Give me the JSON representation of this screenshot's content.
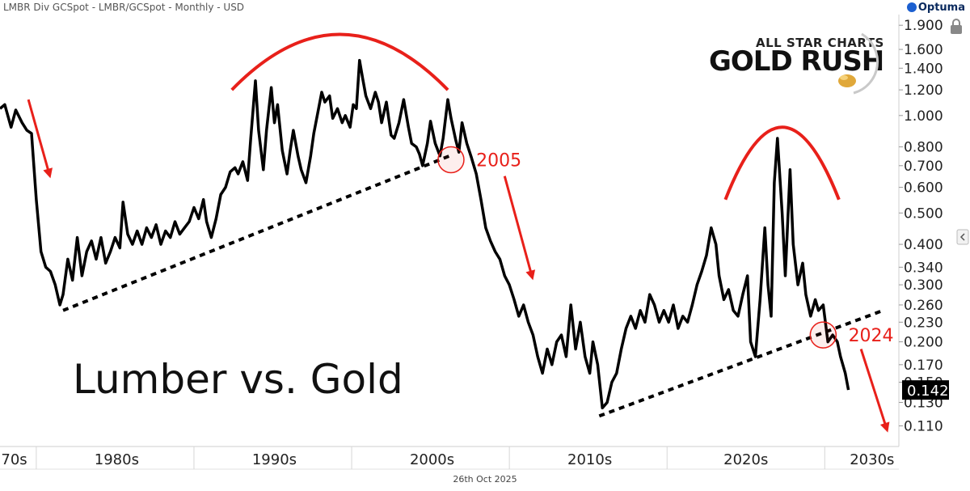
{
  "header": {
    "instrument": "LMBR Div GCSpot - LMBR/GCSpot - Monthly - USD",
    "brand": "Optuma"
  },
  "logo": {
    "top": "ALL STAR CHARTS",
    "main": "GOLD RUSH"
  },
  "footer": {
    "date": "26th Oct 2025"
  },
  "colors": {
    "line": "#000000",
    "annotation": "#e8201a",
    "axis_text": "#222222",
    "price_tag": "#000000"
  },
  "icons": {
    "lock": "lock-icon",
    "side": "chevron-left-icon"
  },
  "chart_data": {
    "type": "line",
    "title": "Lumber vs. Gold",
    "xlabel": "",
    "ylabel": "",
    "y_scale": "log",
    "ylim": [
      0.095,
      2.05
    ],
    "xlim": [
      1976,
      2033
    ],
    "grid": false,
    "y_ticks": [
      1.9,
      1.6,
      1.4,
      1.2,
      1.0,
      0.8,
      0.7,
      0.6,
      0.5,
      0.4,
      0.34,
      0.3,
      0.26,
      0.23,
      0.2,
      0.17,
      0.15,
      0.13,
      0.11
    ],
    "y_tick_labels": [
      "1.900",
      "1.600",
      "1.400",
      "1.200",
      "1.000",
      "0.800",
      "0.700",
      "0.600",
      "0.500",
      "0.400",
      "0.340",
      "0.300",
      "0.260",
      "0.230",
      "0.200",
      "0.170",
      "0.150",
      "0.130",
      "0.110"
    ],
    "x_decades": [
      {
        "label": "70s",
        "center": 1976.9
      },
      {
        "label": "1980s",
        "center": 1983.4
      },
      {
        "label": "1990s",
        "center": 1993.4
      },
      {
        "label": "2000s",
        "center": 2003.4
      },
      {
        "label": "2010s",
        "center": 2013.4
      },
      {
        "label": "2020s",
        "center": 2023.3
      },
      {
        "label": "2030s",
        "center": 2031.3
      }
    ],
    "x_separators": [
      1978.3,
      1988.3,
      1998.3,
      2008.3,
      2018.3,
      2028.3
    ],
    "last_value": "0.142",
    "series": [
      {
        "values": [
          [
            1976.0,
            1.05
          ],
          [
            1976.3,
            1.08
          ],
          [
            1976.7,
            0.92
          ],
          [
            1977.0,
            1.04
          ],
          [
            1977.4,
            0.95
          ],
          [
            1977.7,
            0.9
          ],
          [
            1978.0,
            0.88
          ],
          [
            1978.3,
            0.55
          ],
          [
            1978.6,
            0.38
          ],
          [
            1978.9,
            0.34
          ],
          [
            1979.2,
            0.33
          ],
          [
            1979.5,
            0.3
          ],
          [
            1979.8,
            0.26
          ],
          [
            1980.0,
            0.28
          ],
          [
            1980.3,
            0.36
          ],
          [
            1980.6,
            0.31
          ],
          [
            1980.9,
            0.42
          ],
          [
            1981.2,
            0.32
          ],
          [
            1981.5,
            0.38
          ],
          [
            1981.8,
            0.41
          ],
          [
            1982.1,
            0.36
          ],
          [
            1982.4,
            0.42
          ],
          [
            1982.7,
            0.35
          ],
          [
            1983.0,
            0.38
          ],
          [
            1983.3,
            0.42
          ],
          [
            1983.6,
            0.39
          ],
          [
            1983.8,
            0.54
          ],
          [
            1984.1,
            0.43
          ],
          [
            1984.4,
            0.4
          ],
          [
            1984.7,
            0.44
          ],
          [
            1985.0,
            0.4
          ],
          [
            1985.3,
            0.45
          ],
          [
            1985.6,
            0.42
          ],
          [
            1985.9,
            0.46
          ],
          [
            1986.2,
            0.4
          ],
          [
            1986.5,
            0.44
          ],
          [
            1986.8,
            0.42
          ],
          [
            1987.1,
            0.47
          ],
          [
            1987.4,
            0.43
          ],
          [
            1987.7,
            0.45
          ],
          [
            1988.0,
            0.47
          ],
          [
            1988.3,
            0.52
          ],
          [
            1988.6,
            0.48
          ],
          [
            1988.9,
            0.55
          ],
          [
            1989.1,
            0.47
          ],
          [
            1989.4,
            0.42
          ],
          [
            1989.7,
            0.48
          ],
          [
            1990.0,
            0.57
          ],
          [
            1990.3,
            0.6
          ],
          [
            1990.6,
            0.67
          ],
          [
            1990.9,
            0.69
          ],
          [
            1991.1,
            0.66
          ],
          [
            1991.4,
            0.72
          ],
          [
            1991.7,
            0.63
          ],
          [
            1991.9,
            0.85
          ],
          [
            1992.2,
            1.28
          ],
          [
            1992.4,
            0.9
          ],
          [
            1992.7,
            0.68
          ],
          [
            1992.9,
            0.9
          ],
          [
            1993.2,
            1.22
          ],
          [
            1993.4,
            0.95
          ],
          [
            1993.6,
            1.08
          ],
          [
            1993.9,
            0.78
          ],
          [
            1994.2,
            0.66
          ],
          [
            1994.4,
            0.78
          ],
          [
            1994.6,
            0.9
          ],
          [
            1994.9,
            0.75
          ],
          [
            1995.1,
            0.68
          ],
          [
            1995.4,
            0.62
          ],
          [
            1995.7,
            0.75
          ],
          [
            1995.9,
            0.88
          ],
          [
            1996.2,
            1.05
          ],
          [
            1996.4,
            1.18
          ],
          [
            1996.6,
            1.1
          ],
          [
            1996.9,
            1.15
          ],
          [
            1997.1,
            0.98
          ],
          [
            1997.4,
            1.05
          ],
          [
            1997.7,
            0.95
          ],
          [
            1997.9,
            1.0
          ],
          [
            1998.2,
            0.92
          ],
          [
            1998.4,
            1.08
          ],
          [
            1998.6,
            1.05
          ],
          [
            1998.8,
            1.48
          ],
          [
            1999.0,
            1.3
          ],
          [
            1999.2,
            1.15
          ],
          [
            1999.5,
            1.05
          ],
          [
            1999.8,
            1.18
          ],
          [
            2000.0,
            1.1
          ],
          [
            2000.2,
            0.95
          ],
          [
            2000.5,
            1.1
          ],
          [
            2000.8,
            0.87
          ],
          [
            2001.0,
            0.85
          ],
          [
            2001.3,
            0.95
          ],
          [
            2001.6,
            1.12
          ],
          [
            2001.9,
            0.92
          ],
          [
            2002.1,
            0.82
          ],
          [
            2002.4,
            0.8
          ],
          [
            2002.6,
            0.76
          ],
          [
            2002.8,
            0.7
          ],
          [
            2003.1,
            0.82
          ],
          [
            2003.3,
            0.96
          ],
          [
            2003.6,
            0.82
          ],
          [
            2003.9,
            0.75
          ],
          [
            2004.1,
            0.85
          ],
          [
            2004.4,
            1.12
          ],
          [
            2004.6,
            0.98
          ],
          [
            2004.9,
            0.84
          ],
          [
            2005.1,
            0.77
          ],
          [
            2005.3,
            0.95
          ],
          [
            2005.6,
            0.82
          ],
          [
            2005.9,
            0.74
          ],
          [
            2006.2,
            0.66
          ],
          [
            2006.5,
            0.55
          ],
          [
            2006.8,
            0.45
          ],
          [
            2007.1,
            0.41
          ],
          [
            2007.4,
            0.38
          ],
          [
            2007.7,
            0.36
          ],
          [
            2008.0,
            0.32
          ],
          [
            2008.3,
            0.3
          ],
          [
            2008.6,
            0.27
          ],
          [
            2008.9,
            0.24
          ],
          [
            2009.2,
            0.26
          ],
          [
            2009.5,
            0.23
          ],
          [
            2009.8,
            0.21
          ],
          [
            2010.1,
            0.18
          ],
          [
            2010.4,
            0.16
          ],
          [
            2010.7,
            0.19
          ],
          [
            2011.0,
            0.17
          ],
          [
            2011.3,
            0.2
          ],
          [
            2011.6,
            0.21
          ],
          [
            2011.9,
            0.18
          ],
          [
            2012.2,
            0.26
          ],
          [
            2012.5,
            0.19
          ],
          [
            2012.8,
            0.23
          ],
          [
            2013.1,
            0.18
          ],
          [
            2013.4,
            0.16
          ],
          [
            2013.6,
            0.2
          ],
          [
            2013.9,
            0.17
          ],
          [
            2014.2,
            0.125
          ],
          [
            2014.5,
            0.13
          ],
          [
            2014.8,
            0.15
          ],
          [
            2015.1,
            0.16
          ],
          [
            2015.4,
            0.19
          ],
          [
            2015.7,
            0.22
          ],
          [
            2016.0,
            0.24
          ],
          [
            2016.3,
            0.22
          ],
          [
            2016.6,
            0.25
          ],
          [
            2016.9,
            0.23
          ],
          [
            2017.2,
            0.28
          ],
          [
            2017.5,
            0.26
          ],
          [
            2017.8,
            0.23
          ],
          [
            2018.1,
            0.25
          ],
          [
            2018.4,
            0.23
          ],
          [
            2018.7,
            0.26
          ],
          [
            2019.0,
            0.22
          ],
          [
            2019.3,
            0.24
          ],
          [
            2019.6,
            0.23
          ],
          [
            2019.9,
            0.26
          ],
          [
            2020.2,
            0.3
          ],
          [
            2020.5,
            0.33
          ],
          [
            2020.8,
            0.37
          ],
          [
            2021.1,
            0.45
          ],
          [
            2021.4,
            0.4
          ],
          [
            2021.6,
            0.32
          ],
          [
            2021.9,
            0.27
          ],
          [
            2022.2,
            0.29
          ],
          [
            2022.5,
            0.25
          ],
          [
            2022.8,
            0.24
          ],
          [
            2023.1,
            0.28
          ],
          [
            2023.4,
            0.32
          ],
          [
            2023.6,
            0.2
          ],
          [
            2023.9,
            0.18
          ],
          [
            2024.2,
            0.27
          ],
          [
            2024.5,
            0.45
          ],
          [
            2024.7,
            0.3
          ],
          [
            2024.9,
            0.24
          ],
          [
            2025.1,
            0.62
          ],
          [
            2025.3,
            0.85
          ],
          [
            2025.6,
            0.5
          ],
          [
            2025.8,
            0.32
          ],
          [
            2026.1,
            0.68
          ],
          [
            2026.3,
            0.4
          ],
          [
            2026.6,
            0.3
          ],
          [
            2026.9,
            0.35
          ],
          [
            2027.1,
            0.28
          ],
          [
            2027.4,
            0.24
          ],
          [
            2027.7,
            0.27
          ],
          [
            2027.9,
            0.25
          ],
          [
            2028.2,
            0.26
          ],
          [
            2028.5,
            0.2
          ],
          [
            2028.8,
            0.21
          ],
          [
            2029.1,
            0.2
          ],
          [
            2029.3,
            0.18
          ],
          [
            2029.6,
            0.16
          ],
          [
            2029.8,
            0.142
          ]
        ]
      }
    ],
    "trendlines": [
      {
        "from": [
          1980.0,
          0.25
        ],
        "to": [
          2004.5,
          0.75
        ]
      },
      {
        "from": [
          2014.0,
          0.118
        ],
        "to": [
          2032.0,
          0.25
        ]
      }
    ],
    "arcs": [
      {
        "x0": 1990.7,
        "x1": 2004.4,
        "peak": 1.78,
        "base": 1.2
      },
      {
        "x0": 2022.0,
        "x1": 2029.2,
        "peak": 0.92,
        "base": 0.55
      }
    ],
    "annotations": [
      {
        "label": "2005",
        "circle": [
          2004.6,
          0.73
        ],
        "text_at": [
          2006.2,
          0.73
        ]
      },
      {
        "label": "2024",
        "circle": [
          2028.2,
          0.21
        ],
        "text_at": [
          2029.8,
          0.21
        ]
      }
    ],
    "arrows": [
      {
        "from": [
          1977.8,
          1.12
        ],
        "to": [
          1979.2,
          0.64
        ]
      },
      {
        "from": [
          2008.0,
          0.65
        ],
        "to": [
          2009.8,
          0.31
        ]
      },
      {
        "from": [
          2030.6,
          0.19
        ],
        "to": [
          2032.3,
          0.105
        ]
      }
    ]
  }
}
